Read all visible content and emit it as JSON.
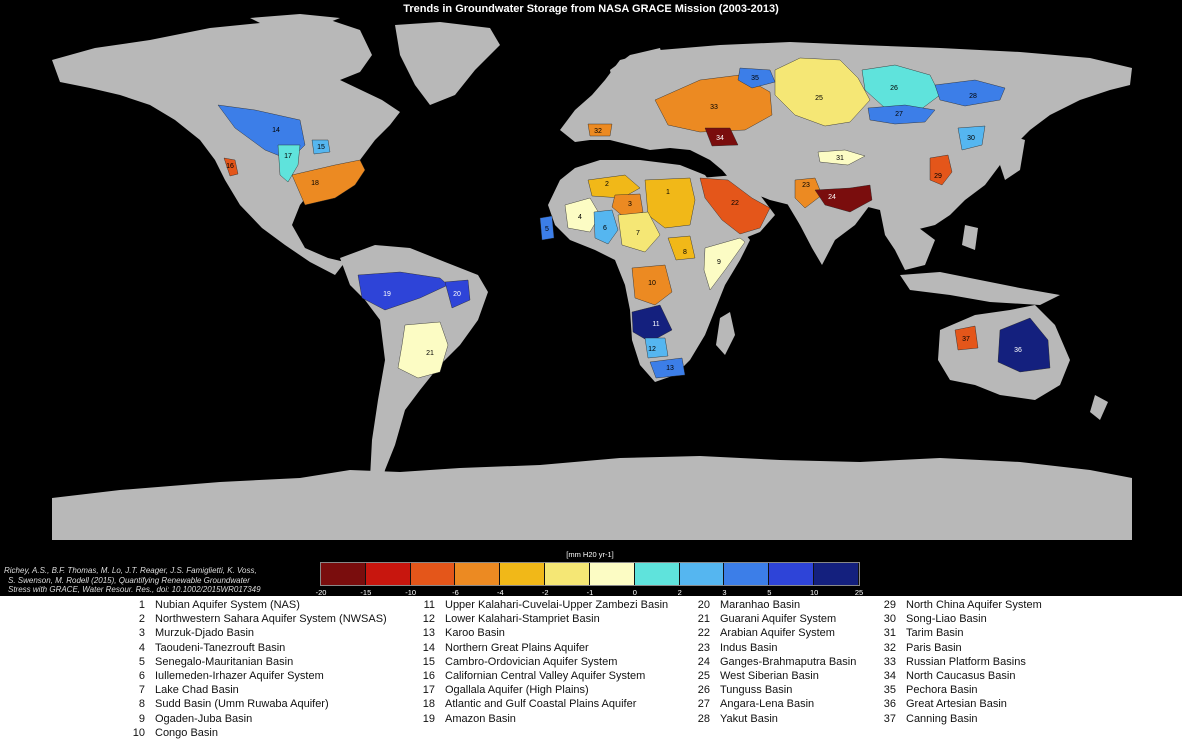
{
  "title": "Trends in Groundwater Storage from NASA GRACE Mission (2003-2013)",
  "colorbar": {
    "unit_label": "[mm H20 yr-1]",
    "ticks": [
      "-20",
      "-15",
      "-10",
      "-6",
      "-4",
      "-2",
      "-1",
      "0",
      "2",
      "3",
      "5",
      "10",
      "25"
    ],
    "colors": [
      "#7a0d0d",
      "#c8160e",
      "#e4561a",
      "#ec8a22",
      "#f1b818",
      "#f5e775",
      "#fcfcc4",
      "#5fe3dc",
      "#55b6f0",
      "#3c7ee8",
      "#2e44d8",
      "#14207e"
    ]
  },
  "citation": {
    "line1": "Richey, A.S., B.F. Thomas, M. Lo, J.T. Reager, J.S. Famiglietti, K. Voss,",
    "line2": "S. Swenson, M. Rodell (2015), Quantifying Renewable Groundwater",
    "line3": "Stress with GRACE, Water Resour. Res., doi: 10.1002/2015WR017349",
    "line4": ""
  },
  "aquifers": [
    {
      "num": "1",
      "name": "Nubian Aquifer System (NAS)",
      "color": "#f1b818"
    },
    {
      "num": "2",
      "name": "Northwestern Sahara Aquifer System (NWSAS)",
      "color": "#f1b818"
    },
    {
      "num": "3",
      "name": "Murzuk-Djado Basin",
      "color": "#ec8a22"
    },
    {
      "num": "4",
      "name": "Taoudeni-Tanezrouft Basin",
      "color": "#fcfcc4"
    },
    {
      "num": "5",
      "name": "Senegalo-Mauritanian Basin",
      "color": "#3c7ee8"
    },
    {
      "num": "6",
      "name": "Iullemeden-Irhazer Aquifer System",
      "color": "#55b6f0"
    },
    {
      "num": "7",
      "name": "Lake Chad Basin",
      "color": "#f5e775"
    },
    {
      "num": "8",
      "name": "Sudd Basin (Umm Ruwaba Aquifer)",
      "color": "#f1b818"
    },
    {
      "num": "9",
      "name": "Ogaden-Juba Basin",
      "color": "#fcfcc4"
    },
    {
      "num": "10",
      "name": "Congo Basin",
      "color": "#ec8a22"
    },
    {
      "num": "11",
      "name": "Upper Kalahari-Cuvelai-Upper Zambezi Basin",
      "color": "#14207e"
    },
    {
      "num": "12",
      "name": "Lower Kalahari-Stampriet Basin",
      "color": "#55b6f0"
    },
    {
      "num": "13",
      "name": "Karoo Basin",
      "color": "#3c7ee8"
    },
    {
      "num": "14",
      "name": "Northern Great Plains Aquifer",
      "color": "#3c7ee8"
    },
    {
      "num": "15",
      "name": "Cambro-Ordovician Aquifer System",
      "color": "#55b6f0"
    },
    {
      "num": "16",
      "name": "Californian Central Valley Aquifer System",
      "color": "#e4561a"
    },
    {
      "num": "17",
      "name": "Ogallala Aquifer (High Plains)",
      "color": "#5fe3dc"
    },
    {
      "num": "18",
      "name": "Atlantic and Gulf Coastal Plains Aquifer",
      "color": "#ec8a22"
    },
    {
      "num": "19",
      "name": "Amazon Basin",
      "color": "#2e44d8"
    },
    {
      "num": "20",
      "name": "Maranhao Basin",
      "color": "#2e44d8"
    },
    {
      "num": "21",
      "name": "Guarani Aquifer System",
      "color": "#fcfcc4"
    },
    {
      "num": "22",
      "name": "Arabian Aquifer System",
      "color": "#e4561a"
    },
    {
      "num": "23",
      "name": "Indus Basin",
      "color": "#ec8a22"
    },
    {
      "num": "24",
      "name": "Ganges-Brahmaputra Basin",
      "color": "#7a0d0d"
    },
    {
      "num": "25",
      "name": "West Siberian Basin",
      "color": "#f5e775"
    },
    {
      "num": "26",
      "name": "Tunguss Basin",
      "color": "#5fe3dc"
    },
    {
      "num": "27",
      "name": "Angara-Lena Basin",
      "color": "#3c7ee8"
    },
    {
      "num": "28",
      "name": "Yakut Basin",
      "color": "#3c7ee8"
    },
    {
      "num": "29",
      "name": "North China Aquifer System",
      "color": "#e4561a"
    },
    {
      "num": "30",
      "name": "Song-Liao Basin",
      "color": "#55b6f0"
    },
    {
      "num": "31",
      "name": "Tarim Basin",
      "color": "#fcfcc4"
    },
    {
      "num": "32",
      "name": "Paris Basin",
      "color": "#ec8a22"
    },
    {
      "num": "33",
      "name": "Russian Platform Basins",
      "color": "#ec8a22"
    },
    {
      "num": "34",
      "name": "North Caucasus Basin",
      "color": "#7a0d0d"
    },
    {
      "num": "35",
      "name": "Pechora Basin",
      "color": "#3c7ee8"
    },
    {
      "num": "36",
      "name": "Great Artesian Basin",
      "color": "#14207e"
    },
    {
      "num": "37",
      "name": "Canning Basin",
      "color": "#e4561a"
    }
  ],
  "colors": {
    "background": "#000000",
    "land": "#b8b8b8",
    "ocean": "#000000"
  }
}
